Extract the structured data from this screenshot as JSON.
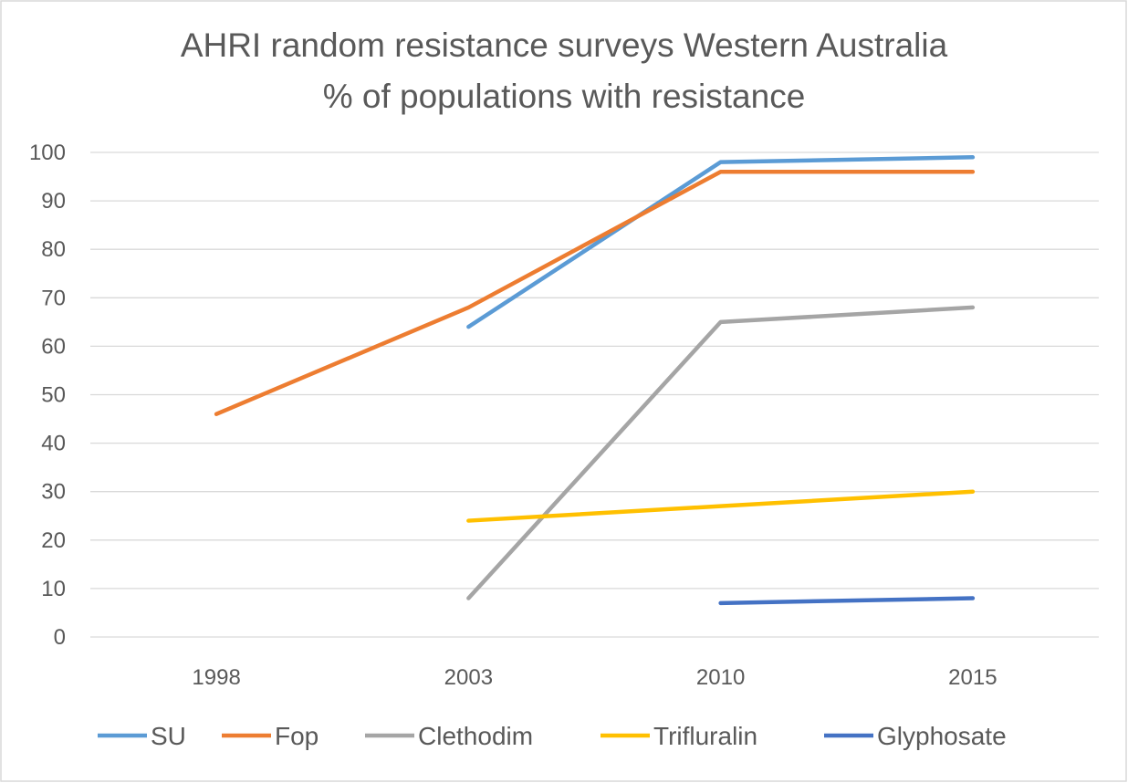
{
  "chart_data": {
    "type": "line",
    "title": [
      "AHRI random resistance surveys Western Australia",
      "% of populations with resistance"
    ],
    "xlabel": "",
    "ylabel": "",
    "categories": [
      "1998",
      "2003",
      "2010",
      "2015"
    ],
    "ylim": [
      0,
      100
    ],
    "yticks": [
      "0",
      "10",
      "20",
      "30",
      "40",
      "50",
      "60",
      "70",
      "80",
      "90",
      "100"
    ],
    "grid": true,
    "legend_position": "bottom",
    "series": [
      {
        "name": "SU",
        "color": "#5B9BD5",
        "values": [
          null,
          64,
          98,
          99
        ]
      },
      {
        "name": "Fop",
        "color": "#ED7D31",
        "values": [
          46,
          68,
          96,
          96
        ]
      },
      {
        "name": "Clethodim",
        "color": "#A5A5A5",
        "values": [
          null,
          8,
          65,
          68
        ]
      },
      {
        "name": "Trifluralin",
        "color": "#FFC000",
        "values": [
          null,
          24,
          27,
          30
        ]
      },
      {
        "name": "Glyphosate",
        "color": "#4472C4",
        "values": [
          null,
          null,
          7,
          8
        ]
      }
    ]
  }
}
